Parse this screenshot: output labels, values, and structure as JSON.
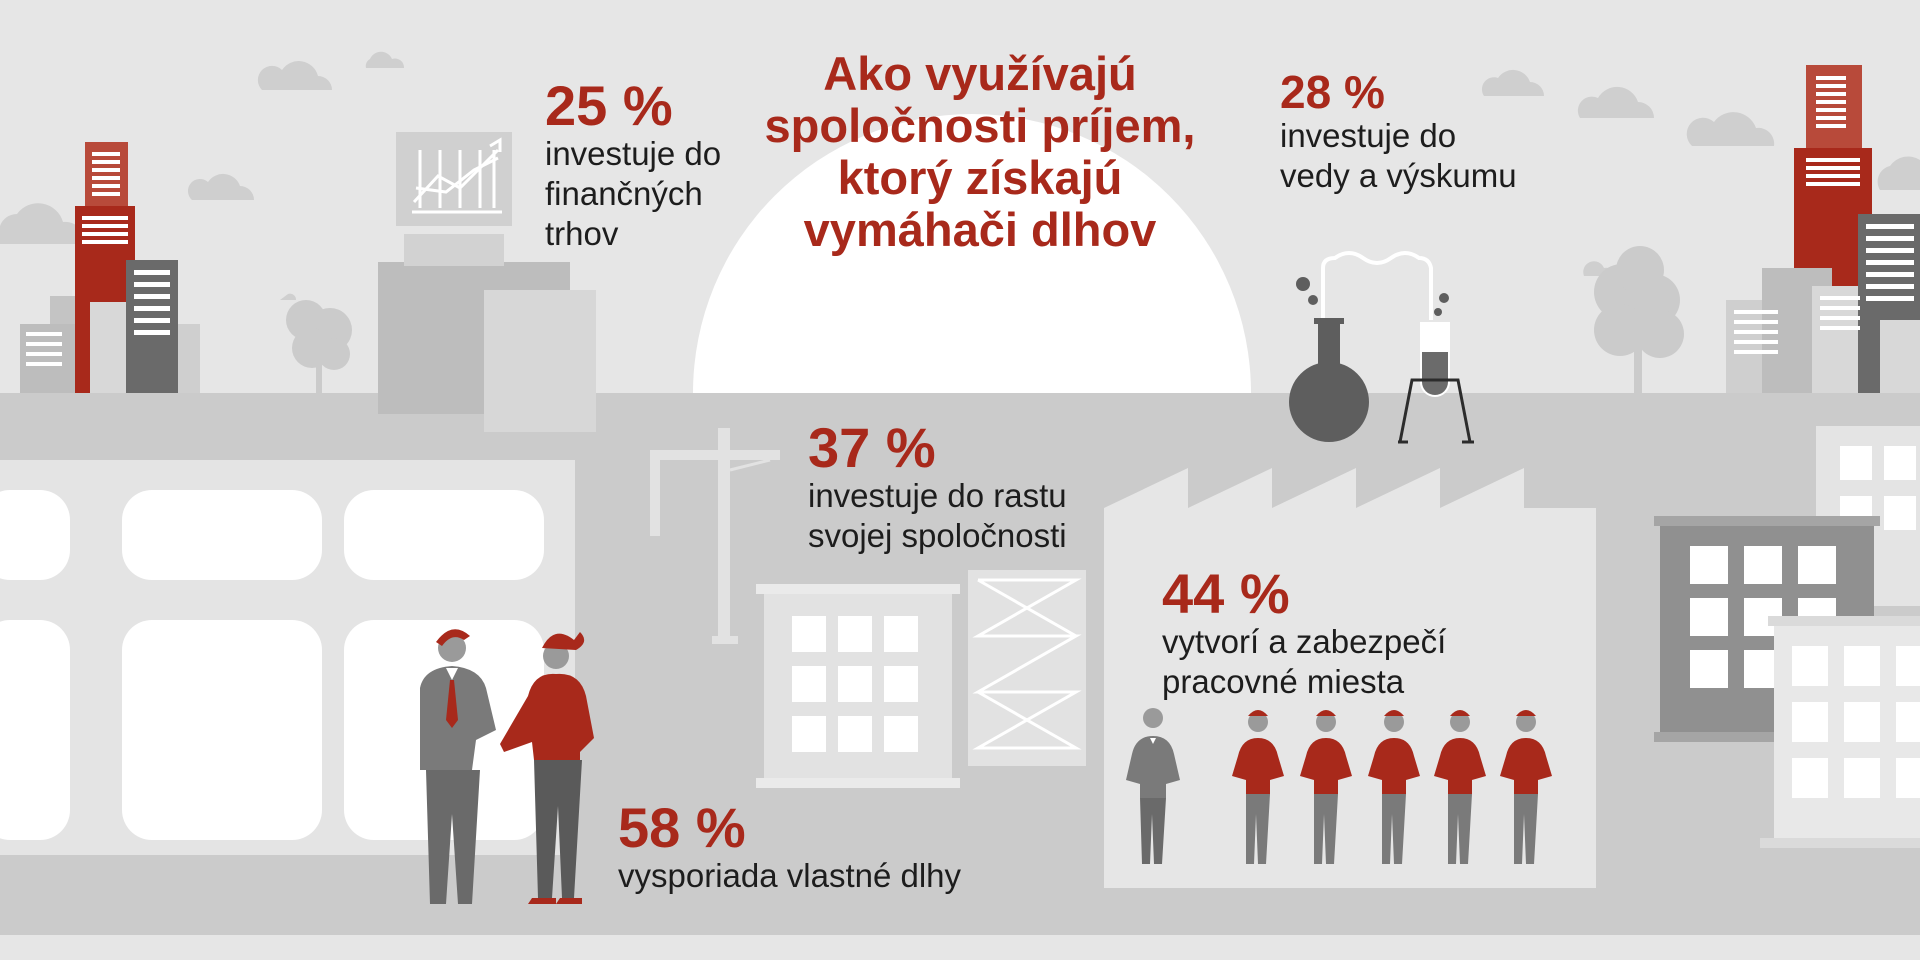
{
  "title": "Ako využívajú spoločnosti príjem, ktorý získajú vymáhači dlhov",
  "stats": {
    "financial": {
      "percent": "25 %",
      "line1": "investuje do",
      "line2": "finančných",
      "line3": "trhov"
    },
    "research": {
      "percent": "28 %",
      "line1": "investuje do",
      "line2": "vedy a výskumu"
    },
    "growth": {
      "percent": "37 %",
      "line1": "investuje do rastu",
      "line2": "svojej spoločnosti"
    },
    "jobs": {
      "percent": "44 %",
      "line1": "vytvorí a zabezpečí",
      "line2": "pracovné miesta"
    },
    "debts": {
      "percent": "58 %",
      "line1": "vysporiada vlastné dlhy"
    }
  },
  "colors": {
    "accent": "#a8291b",
    "text": "#1d1d1d",
    "background": "#e6e6e6"
  }
}
